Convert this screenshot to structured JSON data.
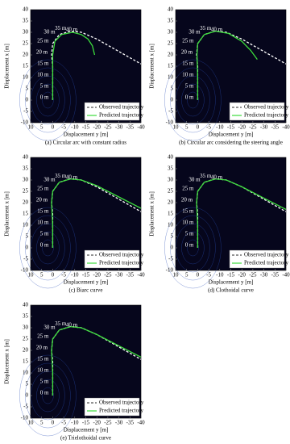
{
  "chart_data": [
    {
      "type": "line",
      "caption": "(a) Circular arc with constant radius",
      "x_label": "Displacement y [m]",
      "y_label": "Displacement x [m]",
      "xlim": [
        10,
        -40
      ],
      "ylim": [
        -10,
        40
      ],
      "xticks": [
        10,
        5,
        0,
        -5,
        -10,
        -15,
        -20,
        -25,
        -30,
        -35,
        -40
      ],
      "yticks": [
        -10,
        -5,
        0,
        5,
        10,
        15,
        20,
        25,
        30,
        35,
        40
      ],
      "annotations": [
        "0 m",
        "5 m",
        "10 m",
        "15 m",
        "20 m",
        "25 m",
        "30 m",
        "35 m",
        "40 m"
      ],
      "legend": "lower right",
      "series": [
        {
          "name": "Observed trajectory",
          "color": "#ffffff",
          "linestyle": "dashed",
          "x": [
            0,
            0,
            0,
            0,
            0.5,
            0,
            -3,
            -8,
            -13,
            -20,
            -30,
            -40
          ],
          "values": [
            0,
            5,
            10,
            15,
            20,
            25,
            29,
            30.5,
            30,
            27,
            21.5,
            16
          ]
        },
        {
          "name": "Predicted trajectory",
          "color": "#3cdc3c",
          "linestyle": "solid",
          "x": [
            0,
            0,
            0,
            -1,
            -4,
            -9,
            -13,
            -16,
            -18,
            -19
          ],
          "values": [
            0,
            10,
            20,
            26,
            29,
            30,
            29,
            27,
            24,
            20
          ]
        }
      ]
    },
    {
      "type": "line",
      "caption": "(b) Circular arc considering the steering angle",
      "x_label": "Displacement y [m]",
      "y_label": "Displacement x [m]",
      "xlim": [
        10,
        -40
      ],
      "ylim": [
        -10,
        40
      ],
      "xticks": [
        10,
        5,
        0,
        -5,
        -10,
        -15,
        -20,
        -25,
        -30,
        -35,
        -40
      ],
      "yticks": [
        -10,
        -5,
        0,
        5,
        10,
        15,
        20,
        25,
        30,
        35,
        40
      ],
      "annotations": [
        "0 m",
        "5 m",
        "10 m",
        "15 m",
        "20 m",
        "25 m",
        "30 m",
        "35 m",
        "40 m"
      ],
      "legend": "lower right",
      "series": [
        {
          "name": "Observed trajectory",
          "color": "#ffffff",
          "linestyle": "dashed",
          "x": [
            0,
            0,
            0,
            0,
            0.5,
            0,
            -3,
            -8,
            -13,
            -20,
            -30,
            -40
          ],
          "values": [
            0,
            5,
            10,
            15,
            20,
            25,
            29,
            30.5,
            30,
            27,
            21.5,
            16
          ]
        },
        {
          "name": "Predicted trajectory",
          "color": "#3cdc3c",
          "linestyle": "solid",
          "x": [
            0,
            0,
            0.3,
            0,
            -3,
            -8,
            -14,
            -20,
            -24,
            -27
          ],
          "values": [
            0,
            10,
            20,
            25,
            29,
            30.5,
            29.5,
            26,
            22,
            18
          ]
        }
      ]
    },
    {
      "type": "line",
      "caption": "(c) Biarc curve",
      "x_label": "Displacement y [m]",
      "y_label": "Displacement x [m]",
      "xlim": [
        10,
        -40
      ],
      "ylim": [
        -10,
        40
      ],
      "xticks": [
        10,
        5,
        0,
        -5,
        -10,
        -15,
        -20,
        -25,
        -30,
        -35,
        -40
      ],
      "yticks": [
        -10,
        -5,
        0,
        5,
        10,
        15,
        20,
        25,
        30,
        35,
        40
      ],
      "annotations": [
        "0 m",
        "5 m",
        "10 m",
        "15 m",
        "20 m",
        "25 m",
        "30 m",
        "35 m",
        "40 m"
      ],
      "legend": "lower right",
      "series": [
        {
          "name": "Observed trajectory",
          "color": "#ffffff",
          "linestyle": "dashed",
          "x": [
            0,
            0,
            0,
            0,
            0.5,
            0,
            -3,
            -8,
            -13,
            -20,
            -30,
            -40
          ],
          "values": [
            0,
            5,
            10,
            15,
            20,
            25,
            29,
            30.5,
            30,
            27,
            21.5,
            16
          ]
        },
        {
          "name": "Predicted trajectory",
          "color": "#3cdc3c",
          "linestyle": "solid",
          "x": [
            0,
            0,
            0.5,
            0,
            -3,
            -8,
            -13,
            -20,
            -30,
            -40
          ],
          "values": [
            0,
            10,
            20,
            25,
            29,
            30.5,
            30,
            27.5,
            22.5,
            17.5
          ]
        }
      ]
    },
    {
      "type": "line",
      "caption": "(d) Clothoidal curve",
      "x_label": "Displacement y [m]",
      "y_label": "Displacement x [m]",
      "xlim": [
        10,
        -40
      ],
      "ylim": [
        -10,
        40
      ],
      "xticks": [
        10,
        5,
        0,
        -5,
        -10,
        -15,
        -20,
        -25,
        -30,
        -35,
        -40
      ],
      "yticks": [
        -10,
        -5,
        0,
        5,
        10,
        15,
        20,
        25,
        30,
        35,
        40
      ],
      "annotations": [
        "0 m",
        "5 m",
        "10 m",
        "15 m",
        "20 m",
        "25 m",
        "30 m",
        "35 m",
        "40 m"
      ],
      "legend": "lower right",
      "series": [
        {
          "name": "Observed trajectory",
          "color": "#ffffff",
          "linestyle": "dashed",
          "x": [
            0,
            0,
            0,
            0,
            0.5,
            0,
            -3,
            -8,
            -13,
            -20,
            -30,
            -40
          ],
          "values": [
            0,
            5,
            10,
            15,
            20,
            25,
            29,
            30.5,
            30,
            27,
            21.5,
            16
          ]
        },
        {
          "name": "Predicted trajectory",
          "color": "#3cdc3c",
          "linestyle": "solid",
          "x": [
            0,
            0,
            0.5,
            0,
            -3,
            -8,
            -13,
            -20,
            -30,
            -40
          ],
          "values": [
            0,
            10,
            20,
            25,
            29,
            30.5,
            30,
            27,
            22,
            17
          ]
        }
      ]
    },
    {
      "type": "line",
      "caption": "(e) Trielothoidal curve",
      "x_label": "Displacement y [m]",
      "y_label": "Displacement x [m]",
      "xlim": [
        10,
        -40
      ],
      "ylim": [
        -10,
        40
      ],
      "xticks": [
        10,
        5,
        0,
        -5,
        -10,
        -15,
        -20,
        -25,
        -30,
        -35,
        -40
      ],
      "yticks": [
        -10,
        -5,
        0,
        5,
        10,
        15,
        20,
        25,
        30,
        35,
        40
      ],
      "annotations": [
        "0 m",
        "5 m",
        "10 m",
        "15 m",
        "20 m",
        "25 m",
        "30 m",
        "35 m",
        "40 m"
      ],
      "legend": "lower right",
      "series": [
        {
          "name": "Observed trajectory",
          "color": "#ffffff",
          "linestyle": "dashed",
          "x": [
            0,
            0,
            0,
            0,
            0.5,
            0,
            -3,
            -8,
            -13,
            -20,
            -30,
            -40
          ],
          "values": [
            0,
            5,
            10,
            15,
            20,
            25,
            29,
            30.5,
            30,
            27,
            21.5,
            16
          ]
        },
        {
          "name": "Predicted trajectory",
          "color": "#3cdc3c",
          "linestyle": "solid",
          "x": [
            0,
            0,
            0.5,
            0,
            -3,
            -8,
            -13,
            -20,
            -30,
            -40
          ],
          "values": [
            0,
            10,
            20,
            25,
            29,
            30.5,
            30,
            27,
            22,
            17
          ]
        }
      ]
    }
  ]
}
